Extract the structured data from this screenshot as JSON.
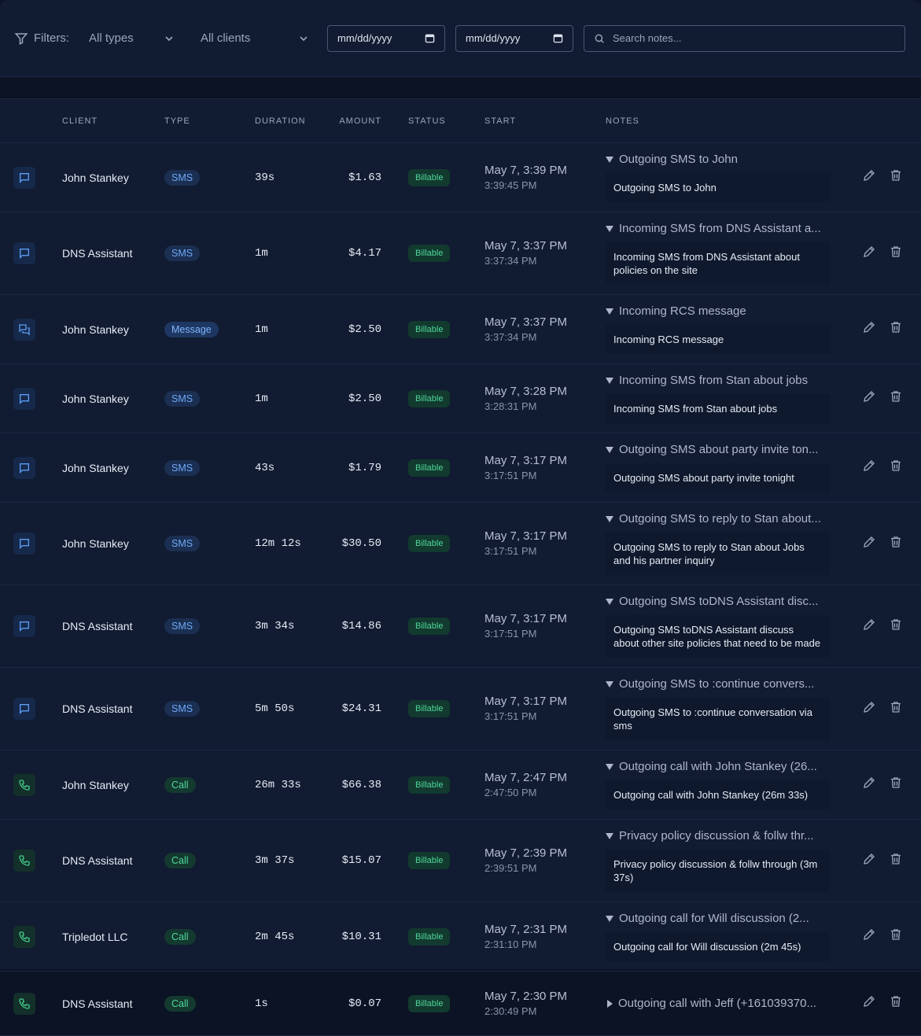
{
  "filters": {
    "label": "Filters:",
    "type": "All types",
    "client": "All clients",
    "date_from": "mm/dd/yyyy",
    "date_to": "mm/dd/yyyy",
    "search_placeholder": "Search notes..."
  },
  "table": {
    "columns": [
      "CLIENT",
      "TYPE",
      "DURATION",
      "AMOUNT",
      "STATUS",
      "START",
      "NOTES"
    ],
    "rows": [
      {
        "client": "John Stankey",
        "type": "SMS",
        "duration": "39s",
        "amount": "$1.63",
        "status": "Billable",
        "start_date": "May 7, 3:39 PM",
        "start_time": "3:39:45 PM",
        "note_summary": "Outgoing SMS to John",
        "note_text": "Outgoing SMS to John",
        "expanded": true
      },
      {
        "client": "DNS Assistant",
        "type": "SMS",
        "duration": "1m",
        "amount": "$4.17",
        "status": "Billable",
        "start_date": "May 7, 3:37 PM",
        "start_time": "3:37:34 PM",
        "note_summary": "Incoming SMS from DNS Assistant a...",
        "note_text": "Incoming SMS from DNS Assistant about policies on the site",
        "expanded": true
      },
      {
        "client": "John Stankey",
        "type": "Message",
        "duration": "1m",
        "amount": "$2.50",
        "status": "Billable",
        "start_date": "May 7, 3:37 PM",
        "start_time": "3:37:34 PM",
        "note_summary": "Incoming RCS message",
        "note_text": "Incoming RCS message",
        "expanded": true
      },
      {
        "client": "John Stankey",
        "type": "SMS",
        "duration": "1m",
        "amount": "$2.50",
        "status": "Billable",
        "start_date": "May 7, 3:28 PM",
        "start_time": "3:28:31 PM",
        "note_summary": "Incoming SMS from Stan about jobs",
        "note_text": "Incoming SMS from Stan about jobs",
        "expanded": true
      },
      {
        "client": "John Stankey",
        "type": "SMS",
        "duration": "43s",
        "amount": "$1.79",
        "status": "Billable",
        "start_date": "May 7, 3:17 PM",
        "start_time": "3:17:51 PM",
        "note_summary": "Outgoing SMS about party invite ton...",
        "note_text": "Outgoing SMS about party invite tonight",
        "expanded": true
      },
      {
        "client": "John Stankey",
        "type": "SMS",
        "duration": "12m 12s",
        "amount": "$30.50",
        "status": "Billable",
        "start_date": "May 7, 3:17 PM",
        "start_time": "3:17:51 PM",
        "note_summary": "Outgoing SMS to reply to Stan about...",
        "note_text": "Outgoing SMS to reply to Stan about Jobs and his partner inquiry",
        "expanded": true
      },
      {
        "client": "DNS Assistant",
        "type": "SMS",
        "duration": "3m 34s",
        "amount": "$14.86",
        "status": "Billable",
        "start_date": "May 7, 3:17 PM",
        "start_time": "3:17:51 PM",
        "note_summary": "Outgoing SMS toDNS Assistant disc...",
        "note_text": "Outgoing SMS toDNS Assistant discuss about other site policies that need to be made",
        "expanded": true
      },
      {
        "client": "DNS Assistant",
        "type": "SMS",
        "duration": "5m 50s",
        "amount": "$24.31",
        "status": "Billable",
        "start_date": "May 7, 3:17 PM",
        "start_time": "3:17:51 PM",
        "note_summary": "Outgoing SMS to :continue convers...",
        "note_text": "Outgoing SMS to :continue conversation via sms",
        "expanded": true
      },
      {
        "client": "John Stankey",
        "type": "Call",
        "duration": "26m 33s",
        "amount": "$66.38",
        "status": "Billable",
        "start_date": "May 7, 2:47 PM",
        "start_time": "2:47:50 PM",
        "note_summary": "Outgoing call with John Stankey (26...",
        "note_text": "Outgoing call with John Stankey  (26m 33s)",
        "expanded": true
      },
      {
        "client": "DNS Assistant",
        "type": "Call",
        "duration": "3m 37s",
        "amount": "$15.07",
        "status": "Billable",
        "start_date": "May 7, 2:39 PM",
        "start_time": "2:39:51 PM",
        "note_summary": "Privacy policy discussion & follw thr...",
        "note_text": "Privacy policy discussion & follw through (3m 37s)",
        "expanded": true
      },
      {
        "client": "Tripledot LLC",
        "type": "Call",
        "duration": "2m 45s",
        "amount": "$10.31",
        "status": "Billable",
        "start_date": "May 7, 2:31 PM",
        "start_time": "2:31:10 PM",
        "note_summary": "Outgoing call for Will discussion (2...",
        "note_text": "Outgoing call for Will discussion (2m 45s)",
        "expanded": true
      },
      {
        "client": "DNS Assistant",
        "type": "Call",
        "duration": "1s",
        "amount": "$0.07",
        "status": "Billable",
        "start_date": "May 7, 2:30 PM",
        "start_time": "2:30:49 PM",
        "note_summary": "Outgoing call with Jeff (+161039370...",
        "expanded": false
      }
    ]
  }
}
